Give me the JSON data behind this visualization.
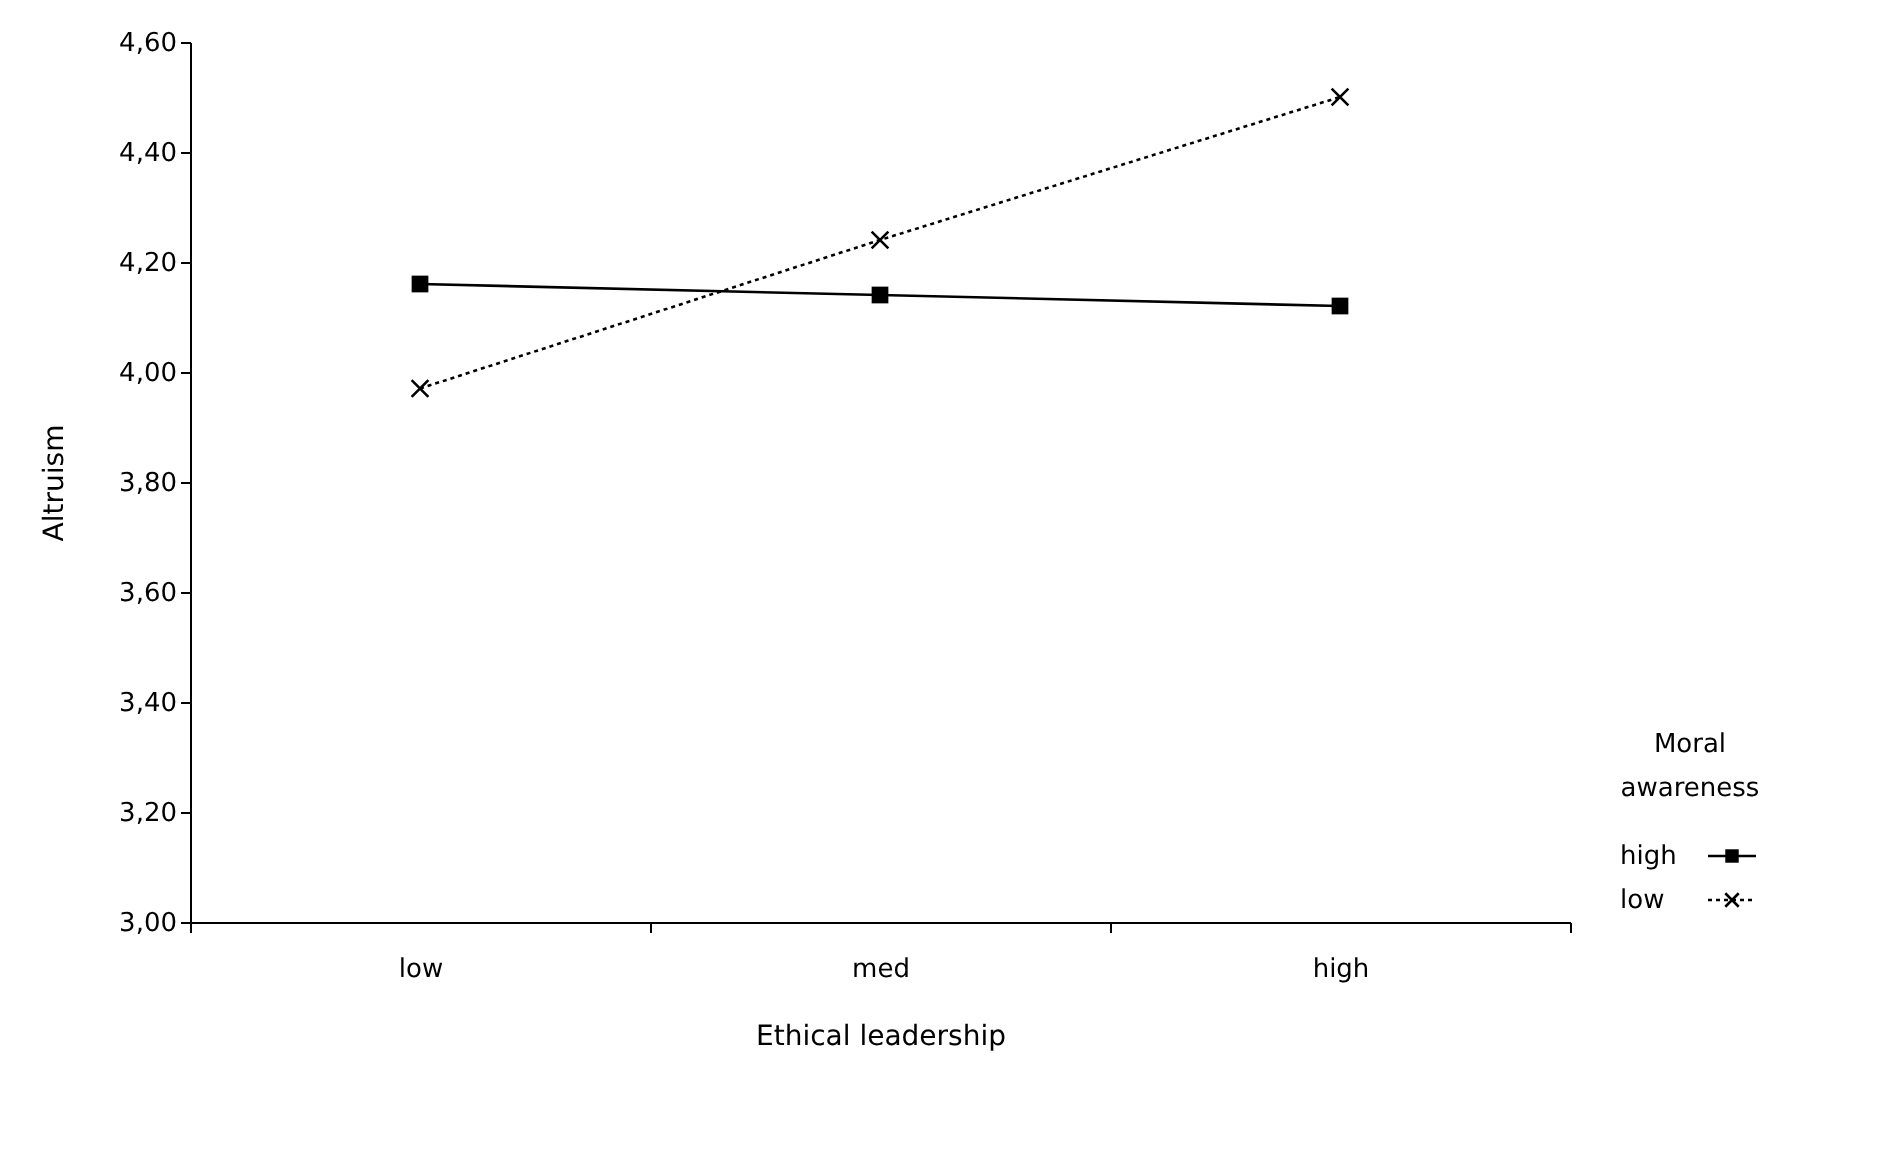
{
  "chart_data": {
    "type": "line",
    "xlabel": "Ethical leadership",
    "ylabel": "Altruism",
    "legend_title": "Moral awareness",
    "categories": [
      "low",
      "med",
      "high"
    ],
    "series": [
      {
        "name": "high",
        "color": "#000000",
        "values": [
          4.16,
          4.14,
          4.12
        ],
        "marker": "square",
        "line_style": "solid"
      },
      {
        "name": "low",
        "color": "#000000",
        "values": [
          3.97,
          4.24,
          4.5
        ],
        "marker": "cross",
        "line_style": "dotted"
      }
    ],
    "ylim": [
      3.0,
      4.6
    ],
    "yticks": [
      {
        "value": 3.0,
        "label": "3,00"
      },
      {
        "value": 3.2,
        "label": "3,20"
      },
      {
        "value": 3.4,
        "label": "3,40"
      },
      {
        "value": 3.6,
        "label": "3,60"
      },
      {
        "value": 3.8,
        "label": "3,80"
      },
      {
        "value": 4.0,
        "label": "4,00"
      },
      {
        "value": 4.2,
        "label": "4,20"
      },
      {
        "value": 4.4,
        "label": "4,40"
      },
      {
        "value": 4.6,
        "label": "4,60"
      }
    ],
    "grid": false,
    "legend": "bottom right"
  }
}
